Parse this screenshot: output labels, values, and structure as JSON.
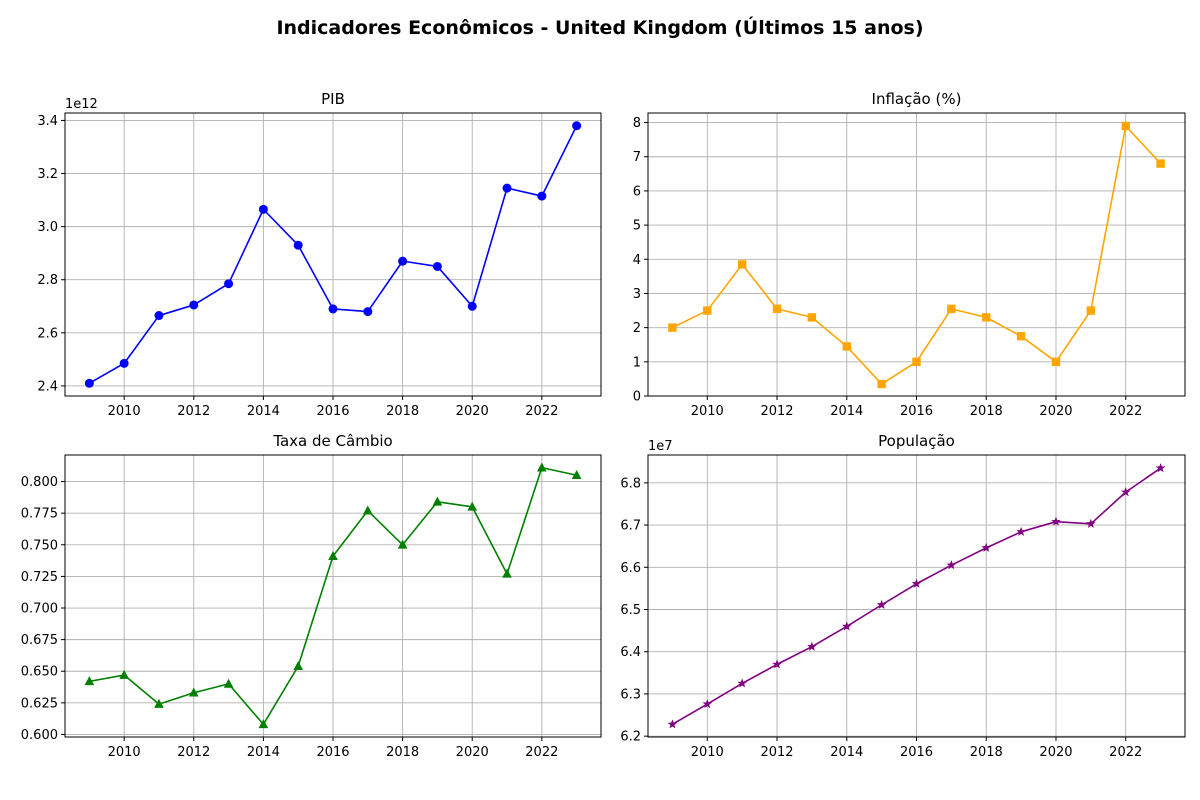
{
  "figure": {
    "title": "Indicadores Econômicos - United Kingdom (Últimos 15 anos)"
  },
  "chart_data": [
    {
      "type": "line",
      "title": "PIB",
      "xlabel": "",
      "ylabel": "",
      "y_offset_label": "1e12",
      "x": [
        2009,
        2010,
        2011,
        2012,
        2013,
        2014,
        2015,
        2016,
        2017,
        2018,
        2019,
        2020,
        2021,
        2022,
        2023
      ],
      "values": [
        2.41,
        2.485,
        2.665,
        2.705,
        2.785,
        3.065,
        2.93,
        2.69,
        2.68,
        2.87,
        2.85,
        2.7,
        3.145,
        3.115,
        3.38
      ],
      "xlim": [
        2008.3,
        2023.7
      ],
      "ylim": [
        2.362,
        3.428
      ],
      "xticks": [
        2010,
        2012,
        2014,
        2016,
        2018,
        2020,
        2022
      ],
      "xtick_labels": [
        "2010",
        "2012",
        "2014",
        "2016",
        "2018",
        "2020",
        "2022"
      ],
      "yticks": [
        2.4,
        2.6,
        2.8,
        3.0,
        3.2,
        3.4
      ],
      "ytick_labels": [
        "2.4",
        "2.6",
        "2.8",
        "3.0",
        "3.2",
        "3.4"
      ],
      "color": "#0000ff",
      "marker": "circle",
      "grid": true
    },
    {
      "type": "line",
      "title": "Inflação (%)",
      "xlabel": "",
      "ylabel": "",
      "y_offset_label": "",
      "x": [
        2009,
        2010,
        2011,
        2012,
        2013,
        2014,
        2015,
        2016,
        2017,
        2018,
        2019,
        2020,
        2021,
        2022,
        2023
      ],
      "values": [
        2.0,
        2.5,
        3.85,
        2.55,
        2.3,
        1.45,
        0.35,
        1.0,
        2.55,
        2.3,
        1.75,
        1.0,
        2.5,
        7.9,
        6.8
      ],
      "xlim": [
        2008.3,
        2023.7
      ],
      "ylim": [
        0.0,
        8.28
      ],
      "xticks": [
        2010,
        2012,
        2014,
        2016,
        2018,
        2020,
        2022
      ],
      "xtick_labels": [
        "2010",
        "2012",
        "2014",
        "2016",
        "2018",
        "2020",
        "2022"
      ],
      "yticks": [
        0,
        1,
        2,
        3,
        4,
        5,
        6,
        7,
        8
      ],
      "ytick_labels": [
        "0",
        "1",
        "2",
        "3",
        "4",
        "5",
        "6",
        "7",
        "8"
      ],
      "color": "#ffa500",
      "marker": "square",
      "grid": true
    },
    {
      "type": "line",
      "title": "Taxa de Câmbio",
      "xlabel": "",
      "ylabel": "",
      "y_offset_label": "",
      "x": [
        2009,
        2010,
        2011,
        2012,
        2013,
        2014,
        2015,
        2016,
        2017,
        2018,
        2019,
        2020,
        2021,
        2022,
        2023
      ],
      "values": [
        0.642,
        0.647,
        0.624,
        0.633,
        0.64,
        0.608,
        0.654,
        0.741,
        0.777,
        0.75,
        0.784,
        0.78,
        0.727,
        0.811,
        0.805
      ],
      "xlim": [
        2008.3,
        2023.7
      ],
      "ylim": [
        0.598,
        0.821
      ],
      "xticks": [
        2010,
        2012,
        2014,
        2016,
        2018,
        2020,
        2022
      ],
      "xtick_labels": [
        "2010",
        "2012",
        "2014",
        "2016",
        "2018",
        "2020",
        "2022"
      ],
      "yticks": [
        0.6,
        0.625,
        0.65,
        0.675,
        0.7,
        0.725,
        0.75,
        0.775,
        0.8
      ],
      "ytick_labels": [
        "0.600",
        "0.625",
        "0.650",
        "0.675",
        "0.700",
        "0.725",
        "0.750",
        "0.775",
        "0.800"
      ],
      "color": "#008000",
      "marker": "triangle",
      "grid": true
    },
    {
      "type": "line",
      "title": "População",
      "xlabel": "",
      "ylabel": "",
      "y_offset_label": "1e7",
      "x": [
        2009,
        2010,
        2011,
        2012,
        2013,
        2014,
        2015,
        2016,
        2017,
        2018,
        2019,
        2020,
        2021,
        2022,
        2023
      ],
      "values": [
        6.228,
        6.276,
        6.325,
        6.37,
        6.412,
        6.46,
        6.511,
        6.561,
        6.605,
        6.646,
        6.684,
        6.708,
        6.703,
        6.778,
        6.835
      ],
      "xlim": [
        2008.3,
        2023.7
      ],
      "ylim": [
        6.198,
        6.866
      ],
      "xticks": [
        2010,
        2012,
        2014,
        2016,
        2018,
        2020,
        2022
      ],
      "xtick_labels": [
        "2010",
        "2012",
        "2014",
        "2016",
        "2018",
        "2020",
        "2022"
      ],
      "yticks": [
        6.2,
        6.3,
        6.4,
        6.5,
        6.6,
        6.7,
        6.8
      ],
      "ytick_labels": [
        "6.2",
        "6.3",
        "6.4",
        "6.5",
        "6.6",
        "6.7",
        "6.8"
      ],
      "color": "#800080",
      "marker": "star",
      "grid": true
    }
  ]
}
